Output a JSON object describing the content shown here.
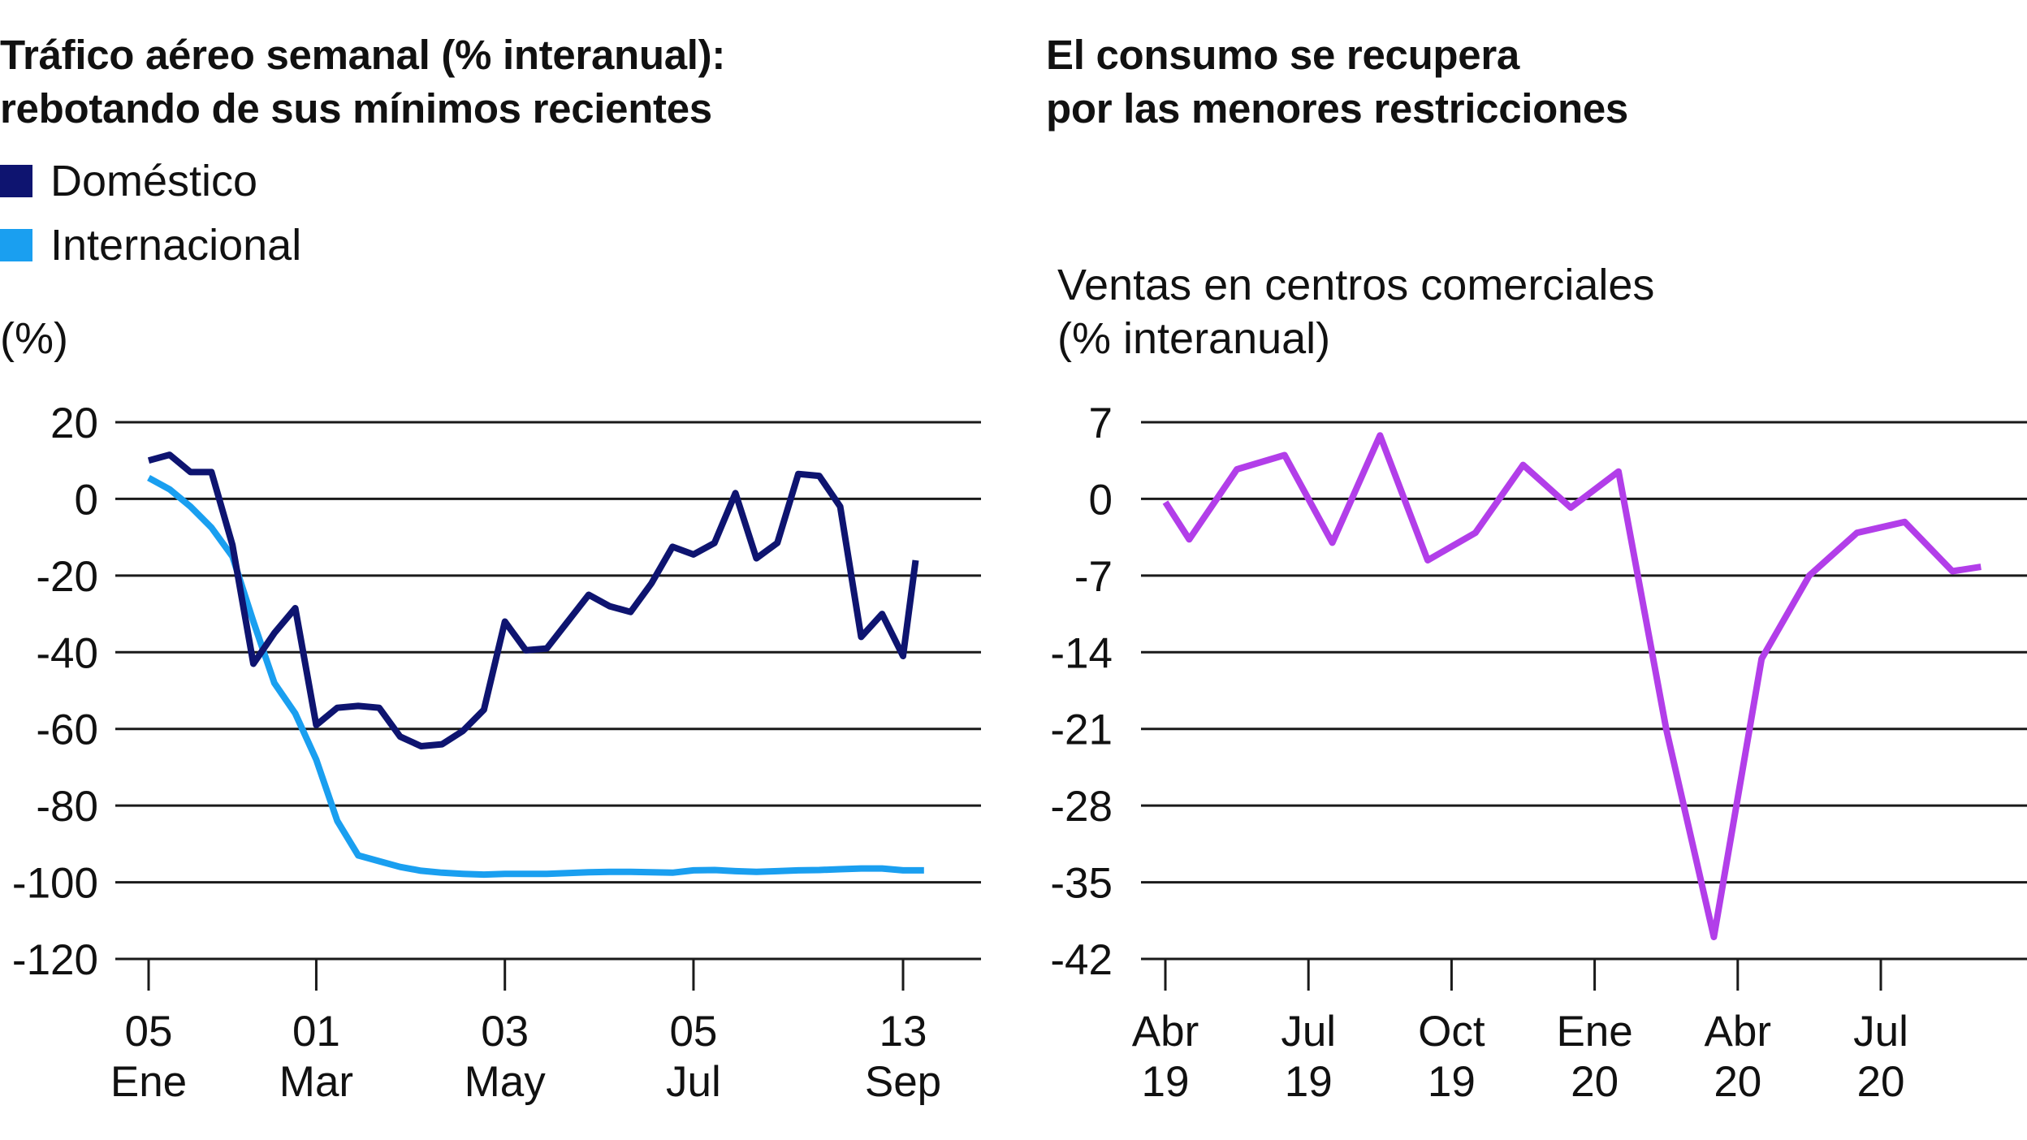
{
  "colors": {
    "domestic": "#0e1470",
    "international": "#1a9ff0",
    "mall_sales": "#b23ee9",
    "grid": "#1a1a1a",
    "text": "#111111"
  },
  "chart_data": [
    {
      "type": "line",
      "title": [
        "Tráfico aéreo semanal (% interanual):",
        "rebotando de sus mínimos recientes"
      ],
      "ylabel": "(%)",
      "ylim": [
        -120,
        20
      ],
      "yticks": [
        20,
        0,
        -20,
        -40,
        -60,
        -80,
        -100,
        -120
      ],
      "ytick_labels": [
        "20",
        "0",
        "-20",
        "-40",
        "-60",
        "-80",
        "-100",
        "-120"
      ],
      "xlim": [
        0,
        36.6
      ],
      "xticks": [
        {
          "x": 0,
          "line1": "05",
          "line2": "Ene"
        },
        {
          "x": 8,
          "line1": "01",
          "line2": "Mar"
        },
        {
          "x": 17,
          "line1": "03",
          "line2": "May"
        },
        {
          "x": 26,
          "line1": "05",
          "line2": "Jul"
        },
        {
          "x": 36,
          "line1": "13",
          "line2": "Sep"
        }
      ],
      "legend": [
        "Doméstico",
        "Internacional"
      ],
      "series": [
        {
          "name": "Doméstico",
          "color_key": "domestic",
          "x": [
            0,
            1,
            2,
            3,
            4,
            5,
            6,
            7,
            8,
            9,
            10,
            11,
            12,
            13,
            14,
            15,
            16,
            17,
            18,
            19,
            20,
            21,
            22,
            23,
            24,
            25,
            26,
            27,
            28,
            29,
            30,
            31,
            32,
            33,
            34,
            35,
            36,
            36.6
          ],
          "values": [
            10,
            11.5,
            7,
            7,
            -12,
            -43,
            -35,
            -28.5,
            -59,
            -54.5,
            -54,
            -54.5,
            -62,
            -64.5,
            -64,
            -60.5,
            -55,
            -32,
            -39.5,
            -39,
            -32,
            -25,
            -28,
            -29.5,
            -22,
            -12.5,
            -14.5,
            -11.5,
            1.5,
            -15.5,
            -11.5,
            6.5,
            6,
            -2,
            -36,
            -30,
            -41,
            -16
          ]
        },
        {
          "name": "Internacional",
          "color_key": "international",
          "x": [
            0,
            1,
            2,
            3,
            4,
            5,
            6,
            7,
            8,
            9,
            10,
            11,
            12,
            13,
            14,
            15,
            16,
            17,
            18,
            19,
            20,
            21,
            22,
            23,
            24,
            25,
            26,
            27,
            28,
            29,
            30,
            31,
            32,
            33,
            34,
            35,
            36,
            37
          ],
          "values": [
            5.5,
            2.5,
            -2,
            -7.5,
            -15,
            -32,
            -48,
            -56,
            -68,
            -84,
            -93,
            -94.5,
            -96,
            -97,
            -97.5,
            -97.8,
            -98,
            -97.8,
            -97.8,
            -97.8,
            -97.6,
            -97.4,
            -97.3,
            -97.3,
            -97.4,
            -97.5,
            -96.9,
            -96.8,
            -97.1,
            -97.3,
            -97.1,
            -96.9,
            -96.8,
            -96.6,
            -96.4,
            -96.4,
            -96.9,
            -96.9
          ]
        }
      ]
    },
    {
      "type": "line",
      "title": [
        "El consumo se recupera",
        "por las menores restricciones"
      ],
      "ylabel": [
        "Ventas en centros comerciales",
        "(% interanual)"
      ],
      "ylim": [
        -42,
        7
      ],
      "yticks": [
        7,
        0,
        -7,
        -14,
        -21,
        -28,
        -35,
        -42
      ],
      "ytick_labels": [
        "7",
        "0",
        "-7",
        "-14",
        "-21",
        "-28",
        "-35",
        "-42"
      ],
      "xlim": [
        0,
        17.5
      ],
      "xticks": [
        {
          "x": 0,
          "line1": "Abr",
          "line2": "19"
        },
        {
          "x": 3,
          "line1": "Jul",
          "line2": "19"
        },
        {
          "x": 6,
          "line1": "Oct",
          "line2": "19"
        },
        {
          "x": 9,
          "line1": "Ene",
          "line2": "20"
        },
        {
          "x": 12,
          "line1": "Abr",
          "line2": "20"
        },
        {
          "x": 15,
          "line1": "Jul",
          "line2": "20"
        }
      ],
      "series": [
        {
          "name": "Ventas en centros comerciales",
          "color_key": "mall_sales",
          "x": [
            0,
            0.5,
            1.5,
            2.5,
            3.5,
            4.5,
            5.5,
            6.5,
            7.5,
            8.5,
            9.5,
            10.5,
            11.5,
            12.5,
            13.5,
            14.5,
            15.5,
            16.5,
            17.1
          ],
          "values": [
            -0.3,
            -3.7,
            2.7,
            4,
            -4,
            5.8,
            -5.6,
            -3.1,
            3.1,
            -0.8,
            2.5,
            -21,
            -40,
            -14.6,
            -7,
            -3.1,
            -2.1,
            -6.6,
            -6.2
          ]
        }
      ]
    }
  ]
}
